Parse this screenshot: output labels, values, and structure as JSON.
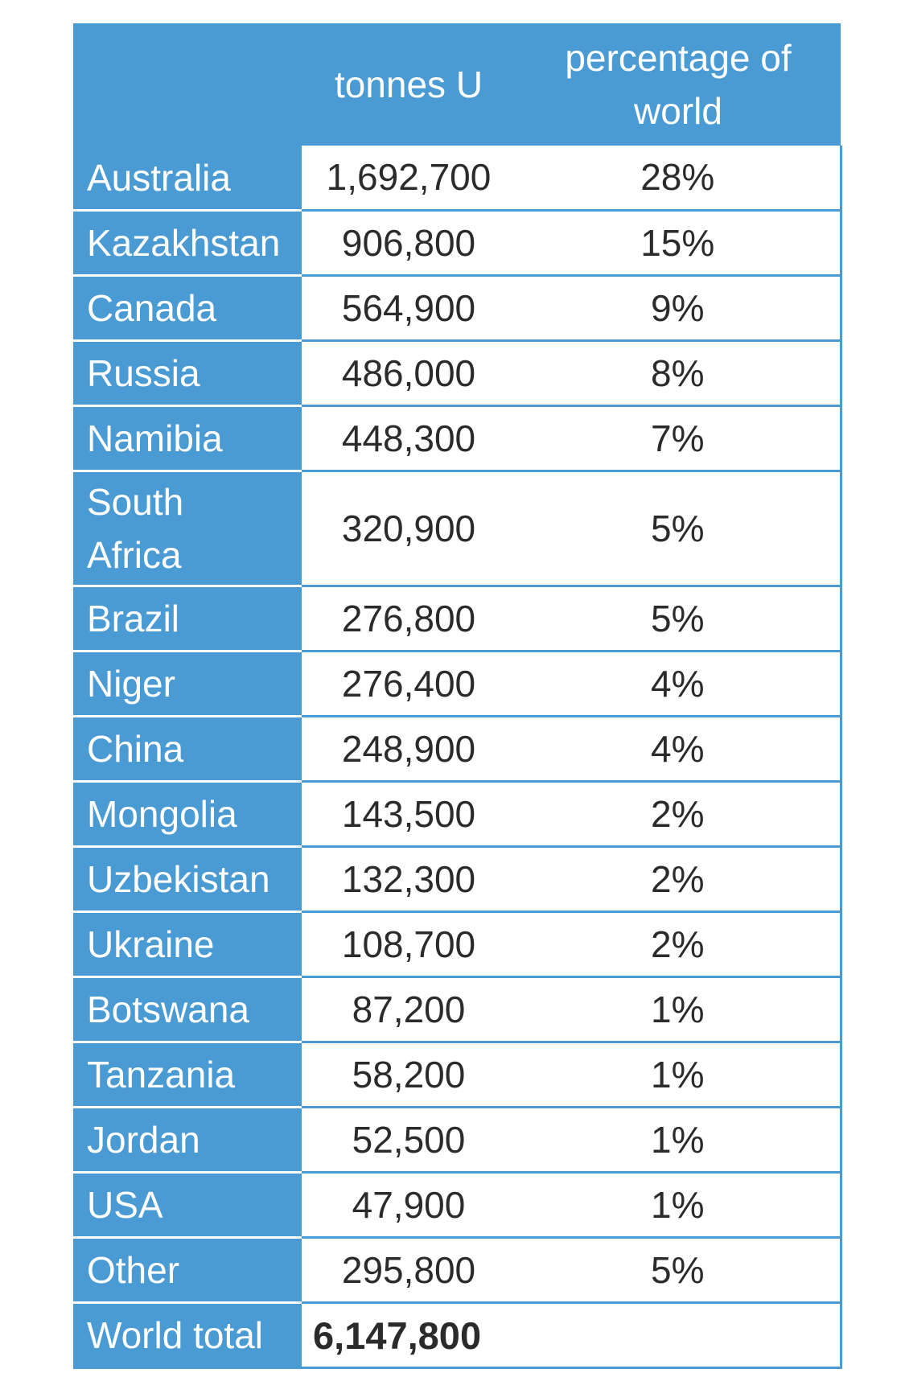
{
  "header": {
    "col1": "",
    "col2": "tonnes U",
    "col3": "percentage of world"
  },
  "rows": [
    {
      "country": "Australia",
      "tonnes": "1,692,700",
      "percent": "28%"
    },
    {
      "country": "Kazakhstan",
      "tonnes": "906,800",
      "percent": "15%"
    },
    {
      "country": "Canada",
      "tonnes": "564,900",
      "percent": "9%"
    },
    {
      "country": "Russia",
      "tonnes": "486,000",
      "percent": "8%"
    },
    {
      "country": "Namibia",
      "tonnes": "448,300",
      "percent": "7%"
    },
    {
      "country": "South Africa",
      "tonnes": "320,900",
      "percent": "5%"
    },
    {
      "country": "Brazil",
      "tonnes": "276,800",
      "percent": "5%"
    },
    {
      "country": "Niger",
      "tonnes": "276,400",
      "percent": "4%"
    },
    {
      "country": "China",
      "tonnes": "248,900",
      "percent": "4%"
    },
    {
      "country": "Mongolia",
      "tonnes": "143,500",
      "percent": "2%"
    },
    {
      "country": "Uzbekistan",
      "tonnes": "132,300",
      "percent": "2%"
    },
    {
      "country": "Ukraine",
      "tonnes": "108,700",
      "percent": "2%"
    },
    {
      "country": "Botswana",
      "tonnes": "87,200",
      "percent": "1%"
    },
    {
      "country": "Tanzania",
      "tonnes": "58,200",
      "percent": "1%"
    },
    {
      "country": "Jordan",
      "tonnes": "52,500",
      "percent": "1%"
    },
    {
      "country": "USA",
      "tonnes": "47,900",
      "percent": "1%"
    },
    {
      "country": "Other",
      "tonnes": "295,800",
      "percent": "5%"
    }
  ],
  "total": {
    "label": "World total",
    "tonnes": "6,147,800",
    "percent": ""
  },
  "colors": {
    "header_bg": "#4a9ad3",
    "header_text": "#ffffff",
    "cell_text": "#2b2b2b"
  }
}
